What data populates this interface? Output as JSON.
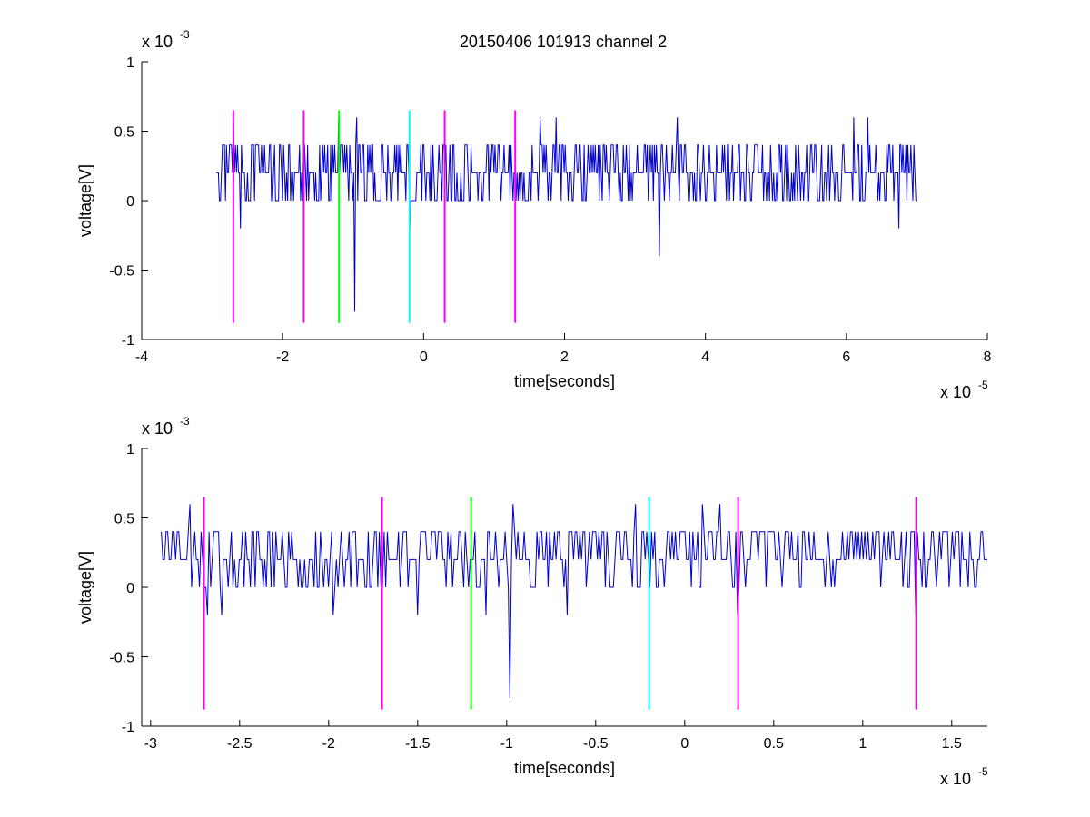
{
  "title": "20150406 101913 channel 2",
  "chart_data": [
    {
      "type": "line",
      "title": "20150406 101913 channel 2",
      "xlabel": "time[seconds]",
      "ylabel": "voltage[V]",
      "x_exponent_label": "x 10",
      "x_exponent_power": "-5",
      "y_exponent_label": "x 10",
      "y_exponent_power": "-3",
      "xlim": [
        -4,
        8
      ],
      "ylim": [
        -1,
        1
      ],
      "xticks": [
        -4,
        -2,
        0,
        2,
        4,
        6,
        8
      ],
      "xtick_labels": [
        "-4",
        "-2",
        "0",
        "2",
        "4",
        "6",
        "8"
      ],
      "yticks": [
        1,
        0.5,
        0,
        -0.5,
        -1
      ],
      "ytick_labels": [
        "1",
        "0.5",
        "0",
        "-0.5",
        "-1"
      ],
      "grid": false,
      "series": [
        {
          "color": "#0000cc",
          "x_range": [
            -2.94,
            7.0
          ],
          "baseline": 0.2,
          "levels": [
            0,
            0.2,
            0.4
          ],
          "spikes": [
            {
              "x": -2.7,
              "y": 0.6
            },
            {
              "x": -2.6,
              "y": -0.2
            },
            {
              "x": -1.2,
              "y": 0.6
            },
            {
              "x": -0.95,
              "y": 0.6
            },
            {
              "x": -0.98,
              "y": -0.8
            },
            {
              "x": -0.2,
              "y": -0.2
            },
            {
              "x": 1.65,
              "y": 0.6
            },
            {
              "x": 1.88,
              "y": 0.6
            },
            {
              "x": 3.35,
              "y": -0.4
            },
            {
              "x": 3.6,
              "y": 0.6
            },
            {
              "x": 6.1,
              "y": 0.6
            },
            {
              "x": 6.3,
              "y": 0.6
            },
            {
              "x": 6.8,
              "y": 0.4
            },
            {
              "x": 6.75,
              "y": -0.2
            }
          ]
        }
      ],
      "markers": [
        {
          "x": -2.7,
          "color": "#ff00ff"
        },
        {
          "x": -1.7,
          "color": "#ff00ff"
        },
        {
          "x": -1.2,
          "color": "#00ff00"
        },
        {
          "x": -0.2,
          "color": "#00ffff"
        },
        {
          "x": 0.3,
          "color": "#ff00ff"
        },
        {
          "x": 1.3,
          "color": "#ff00ff"
        }
      ],
      "marker_y_range": [
        -0.88,
        0.65
      ]
    },
    {
      "type": "line",
      "xlabel": "time[seconds]",
      "ylabel": "voltage[V]",
      "x_exponent_label": "x 10",
      "x_exponent_power": "-5",
      "y_exponent_label": "x 10",
      "y_exponent_power": "-3",
      "xlim": [
        -3.05,
        1.7
      ],
      "ylim": [
        -1,
        1
      ],
      "xticks": [
        -3,
        -2.5,
        -2,
        -1.5,
        -1,
        -0.5,
        0,
        0.5,
        1,
        1.5
      ],
      "xtick_labels": [
        "-3",
        "-2.5",
        "-2",
        "-1.5",
        "-1",
        "-0.5",
        "0",
        "0.5",
        "1",
        "1.5"
      ],
      "yticks": [
        1,
        0.5,
        0,
        -0.5,
        -1
      ],
      "ytick_labels": [
        "1",
        "0.5",
        "0",
        "-0.5",
        "-1"
      ],
      "grid": false,
      "series": [
        {
          "color": "#0000cc",
          "x_range": [
            -2.94,
            1.7
          ],
          "baseline": 0.2,
          "levels": [
            0,
            0.2,
            0.4
          ],
          "spikes": [
            {
              "x": -2.78,
              "y": 0.6
            },
            {
              "x": -2.68,
              "y": -0.2
            },
            {
              "x": -2.6,
              "y": -0.2
            },
            {
              "x": -1.97,
              "y": -0.2
            },
            {
              "x": -1.5,
              "y": -0.2
            },
            {
              "x": -1.12,
              "y": -0.2
            },
            {
              "x": -0.98,
              "y": -0.8
            },
            {
              "x": -0.96,
              "y": 0.6
            },
            {
              "x": -0.66,
              "y": -0.2
            },
            {
              "x": -0.28,
              "y": 0.6
            },
            {
              "x": 0.1,
              "y": 0.6
            },
            {
              "x": 0.2,
              "y": 0.6
            },
            {
              "x": 0.3,
              "y": -0.2
            },
            {
              "x": 1.3,
              "y": -0.2
            }
          ]
        }
      ],
      "markers": [
        {
          "x": -2.7,
          "color": "#ff00ff"
        },
        {
          "x": -1.7,
          "color": "#ff00ff"
        },
        {
          "x": -1.2,
          "color": "#00ff00"
        },
        {
          "x": -0.2,
          "color": "#00ffff"
        },
        {
          "x": 0.3,
          "color": "#ff00ff"
        },
        {
          "x": 1.3,
          "color": "#ff00ff"
        }
      ],
      "marker_y_range": [
        -0.88,
        0.65
      ]
    }
  ]
}
